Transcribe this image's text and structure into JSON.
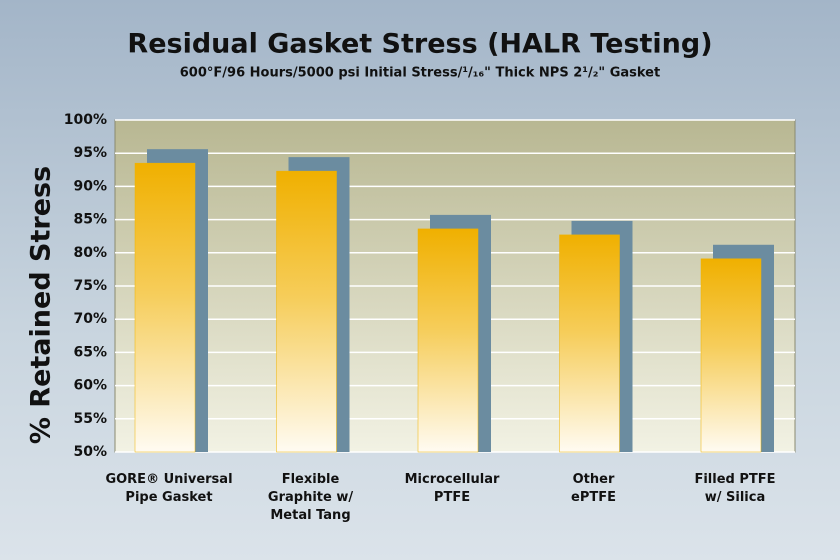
{
  "chart_data": {
    "type": "bar",
    "title": "Residual Gasket Stress (HALR Testing)",
    "subtitle": "600°F/96 Hours/5000 psi Initial Stress/¹/₁₆\" Thick NPS 2¹/₂\" Gasket",
    "y_label": "% Retained Stress",
    "categories": [
      "GORE® Universal\nPipe Gasket",
      "Flexible\nGraphite w/\nMetal Tang",
      "Microcellular\nPTFE",
      "Other\nePTFE",
      "Filled PTFE\nw/ Silica"
    ],
    "values": [
      93.5,
      92.3,
      83.6,
      82.7,
      79.1
    ],
    "color": "#f0b400",
    "ylim": [
      50,
      100
    ],
    "yticks": [
      {
        "value": 50,
        "label": "50%"
      },
      {
        "value": 55,
        "label": "55%"
      },
      {
        "value": 60,
        "label": "60%"
      },
      {
        "value": 65,
        "label": "65%"
      },
      {
        "value": 70,
        "label": "70%"
      },
      {
        "value": 75,
        "label": "75%"
      },
      {
        "value": 80,
        "label": "80%"
      },
      {
        "value": 85,
        "label": "85%"
      },
      {
        "value": 90,
        "label": "90%"
      },
      {
        "value": 95,
        "label": "95%"
      },
      {
        "value": 100,
        "label": "100%"
      }
    ],
    "grid": true
  }
}
